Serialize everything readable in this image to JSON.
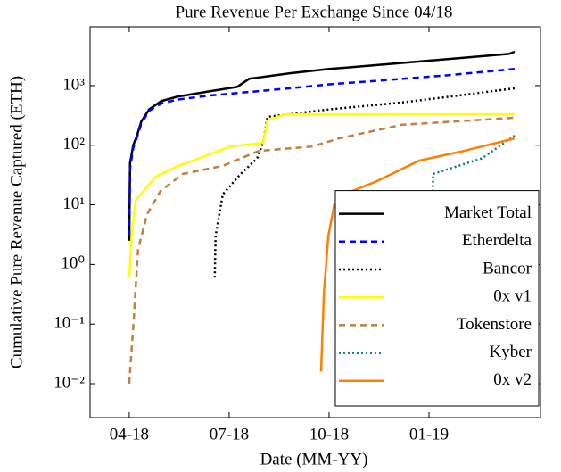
{
  "chart_data": {
    "type": "line",
    "title": "Pure Revenue Per Exchange Since 04/18",
    "xlabel": "Date (MM-YY)",
    "ylabel": "Cumulative Pure Revenue Captured (ETH)",
    "ylog": true,
    "xlim": [
      2018.152,
      2019.279
    ],
    "ylim": [
      0.0027,
      9700
    ],
    "xticks": [
      {
        "value": 2018.25,
        "label": "04-18"
      },
      {
        "value": 2018.5,
        "label": "07-18"
      },
      {
        "value": 2018.75,
        "label": "10-18"
      },
      {
        "value": 2019.0,
        "label": "01-19"
      }
    ],
    "yticks": [
      {
        "value": 0.01,
        "label": "10⁻²"
      },
      {
        "value": 0.1,
        "label": "10⁻¹"
      },
      {
        "value": 1,
        "label": "10⁰"
      },
      {
        "value": 10,
        "label": "10¹"
      },
      {
        "value": 100,
        "label": "10²"
      },
      {
        "value": 1000,
        "label": "10³"
      }
    ],
    "legend": "lower right",
    "series": [
      {
        "name": "Market Total",
        "color": "#000000",
        "dash": "solid",
        "x": [
          2018.25,
          2018.252,
          2018.26,
          2018.27,
          2018.28,
          2018.3,
          2018.33,
          2018.37,
          2018.45,
          2018.52,
          2018.55,
          2018.65,
          2018.75,
          2018.9,
          2019.05,
          2019.2,
          2019.214
        ],
        "values": [
          2.5,
          50,
          100,
          150,
          250,
          400,
          550,
          650,
          800,
          950,
          1300,
          1600,
          1900,
          2300,
          2800,
          3400,
          3700
        ]
      },
      {
        "name": "Etherdelta",
        "color": "#0000ff",
        "dash": "dashed",
        "x": [
          2018.25,
          2018.252,
          2018.26,
          2018.27,
          2018.28,
          2018.3,
          2018.33,
          2018.37,
          2018.45,
          2018.55,
          2018.65,
          2018.75,
          2018.9,
          2019.05,
          2019.214
        ],
        "values": [
          3,
          40,
          90,
          140,
          230,
          380,
          500,
          580,
          680,
          780,
          900,
          1050,
          1250,
          1500,
          1900
        ]
      },
      {
        "name": "Bancor",
        "color": "#000000",
        "dash": "dotted",
        "x": [
          2018.464,
          2018.466,
          2018.484,
          2018.529,
          2018.57,
          2018.585,
          2018.596,
          2018.752,
          2018.931,
          2019.05,
          2019.214
        ],
        "values": [
          0.6,
          3,
          15,
          33,
          60,
          110,
          300,
          400,
          520,
          650,
          900
        ]
      },
      {
        "name": "0x v1",
        "color": "#ffff00",
        "dash": "solid",
        "x": [
          2018.25,
          2018.257,
          2018.266,
          2018.317,
          2018.373,
          2018.44,
          2018.502,
          2018.585,
          2018.596,
          2018.64,
          2019.214
        ],
        "values": [
          0.6,
          3.6,
          12,
          30,
          45,
          66,
          95,
          110,
          260,
          330,
          330
        ]
      },
      {
        "name": "Tokenstore",
        "color": "#bf8040",
        "dash": "dashed",
        "x": [
          2018.25,
          2018.261,
          2018.272,
          2018.295,
          2018.328,
          2018.384,
          2018.484,
          2018.574,
          2018.708,
          2018.775,
          2018.931,
          2019.214
        ],
        "values": [
          0.01,
          0.11,
          1.8,
          7,
          17,
          33,
          45,
          80,
          95,
          130,
          220,
          290
        ]
      },
      {
        "name": "Kyber",
        "color": "#008080",
        "dash": "dotted",
        "x": [
          2019.009,
          2019.01,
          2019.132,
          2019.214
        ],
        "values": [
          0.16,
          33,
          60,
          145
        ]
      },
      {
        "name": "0x v2",
        "color": "#ff8000",
        "dash": "solid",
        "x": [
          2018.73,
          2018.737,
          2018.748,
          2018.763,
          2018.786,
          2018.864,
          2018.975,
          2019.087,
          2019.214
        ],
        "values": [
          0.016,
          0.32,
          3,
          10,
          15,
          24,
          55,
          80,
          130
        ]
      }
    ]
  }
}
